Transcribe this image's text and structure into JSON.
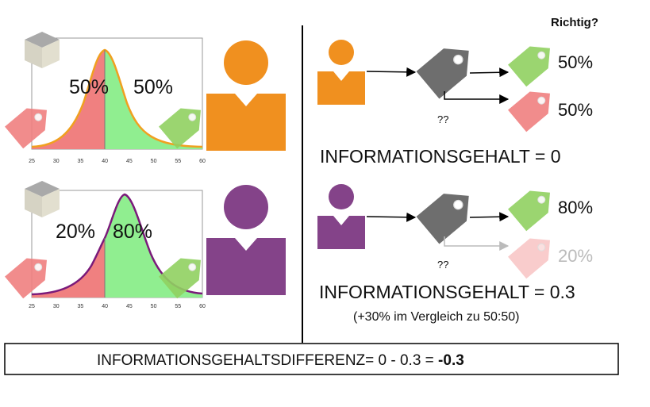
{
  "left": {
    "top_chart": {
      "left_pct": "50%",
      "right_pct": "50%",
      "color": "#f0a020",
      "ticks": [
        "25",
        "30",
        "35",
        "40",
        "45",
        "50",
        "55",
        "60"
      ]
    },
    "bottom_chart": {
      "left_pct": "20%",
      "right_pct": "80%",
      "color": "#7a1a7a",
      "ticks": [
        "25",
        "30",
        "35",
        "40",
        "45",
        "50",
        "55",
        "60"
      ]
    },
    "person_top_color": "#f0901f",
    "person_bottom_color": "#844389"
  },
  "right": {
    "header": "Richtig?",
    "top": {
      "correct_pct": "50%",
      "wrong_pct": "50%",
      "question": "??",
      "info": "INFORMATIONSGEHALT = 0"
    },
    "bottom": {
      "correct_pct": "80%",
      "wrong_pct": "20%",
      "question": "??",
      "info": "INFORMATIONSGEHALT = 0.3",
      "note": "(+30% im Vergleich zu 50:50)"
    }
  },
  "footer": {
    "text": "INFORMATIONSGEHALTSDIFFERENZ= 0 - 0.3 = ",
    "value": "-0.3"
  },
  "colors": {
    "red_region": "#f08080",
    "green_region": "#90ee90",
    "gray_tag": "#6e6e6e"
  }
}
